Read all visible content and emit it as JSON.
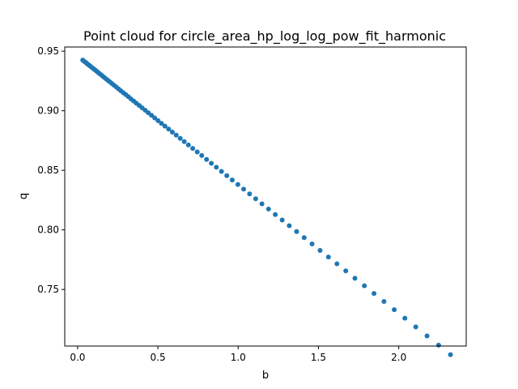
{
  "chart_data": {
    "type": "scatter",
    "title": "Point cloud for circle_area_hp_log_log_pow_fit_harmonic",
    "xlabel": "b",
    "ylabel": "q",
    "xlim": [
      -0.08,
      2.42
    ],
    "ylim": [
      0.7025,
      0.9535
    ],
    "xticks": [
      0.0,
      0.5,
      1.0,
      1.5,
      2.0
    ],
    "xtick_labels": [
      "0.0",
      "0.5",
      "1.0",
      "1.5",
      "2.0"
    ],
    "yticks": [
      0.75,
      0.8,
      0.85,
      0.9,
      0.95
    ],
    "ytick_labels": [
      "0.75",
      "0.80",
      "0.85",
      "0.90",
      "0.95"
    ],
    "grid": false,
    "color": "#1f77b4",
    "series": [
      {
        "x": [
          0.032,
          0.04,
          0.048,
          0.056,
          0.064,
          0.072,
          0.08,
          0.09,
          0.1,
          0.11,
          0.12,
          0.13,
          0.14,
          0.152,
          0.164,
          0.176,
          0.188,
          0.2,
          0.213,
          0.227,
          0.241,
          0.255,
          0.27,
          0.285,
          0.3,
          0.316,
          0.332,
          0.349,
          0.366,
          0.384,
          0.402,
          0.421,
          0.44,
          0.46,
          0.48,
          0.501,
          0.522,
          0.544,
          0.567,
          0.59,
          0.614,
          0.639,
          0.664,
          0.69,
          0.717,
          0.745,
          0.773,
          0.803,
          0.833,
          0.864,
          0.896,
          0.929,
          0.963,
          0.998,
          1.034,
          1.071,
          1.109,
          1.148,
          1.189,
          1.231,
          1.274,
          1.318,
          1.364,
          1.411,
          1.46,
          1.51,
          1.562,
          1.615,
          1.67,
          1.727,
          1.786,
          1.846,
          1.908,
          1.972,
          2.038,
          2.106,
          2.176,
          2.248,
          2.322
        ],
        "y": [
          0.9425,
          0.9416,
          0.9408,
          0.9399,
          0.939,
          0.9382,
          0.9373,
          0.9362,
          0.9351,
          0.9341,
          0.933,
          0.9319,
          0.9308,
          0.9295,
          0.9282,
          0.9269,
          0.9256,
          0.9243,
          0.9229,
          0.9214,
          0.9199,
          0.9183,
          0.9167,
          0.9151,
          0.9135,
          0.9118,
          0.91,
          0.9082,
          0.9063,
          0.9044,
          0.9024,
          0.9004,
          0.8983,
          0.8962,
          0.894,
          0.8917,
          0.8894,
          0.8871,
          0.8846,
          0.8821,
          0.8795,
          0.8768,
          0.8741,
          0.8713,
          0.8684,
          0.8654,
          0.8624,
          0.8591,
          0.8559,
          0.8526,
          0.8491,
          0.8455,
          0.8419,
          0.8381,
          0.8342,
          0.8302,
          0.8261,
          0.8219,
          0.8175,
          0.8129,
          0.8083,
          0.8035,
          0.7986,
          0.7935,
          0.7882,
          0.7828,
          0.7772,
          0.7715,
          0.7656,
          0.7594,
          0.7531,
          0.7466,
          0.7399,
          0.733,
          0.7259,
          0.7186,
          0.711,
          0.7033,
          0.6953
        ]
      }
    ]
  }
}
